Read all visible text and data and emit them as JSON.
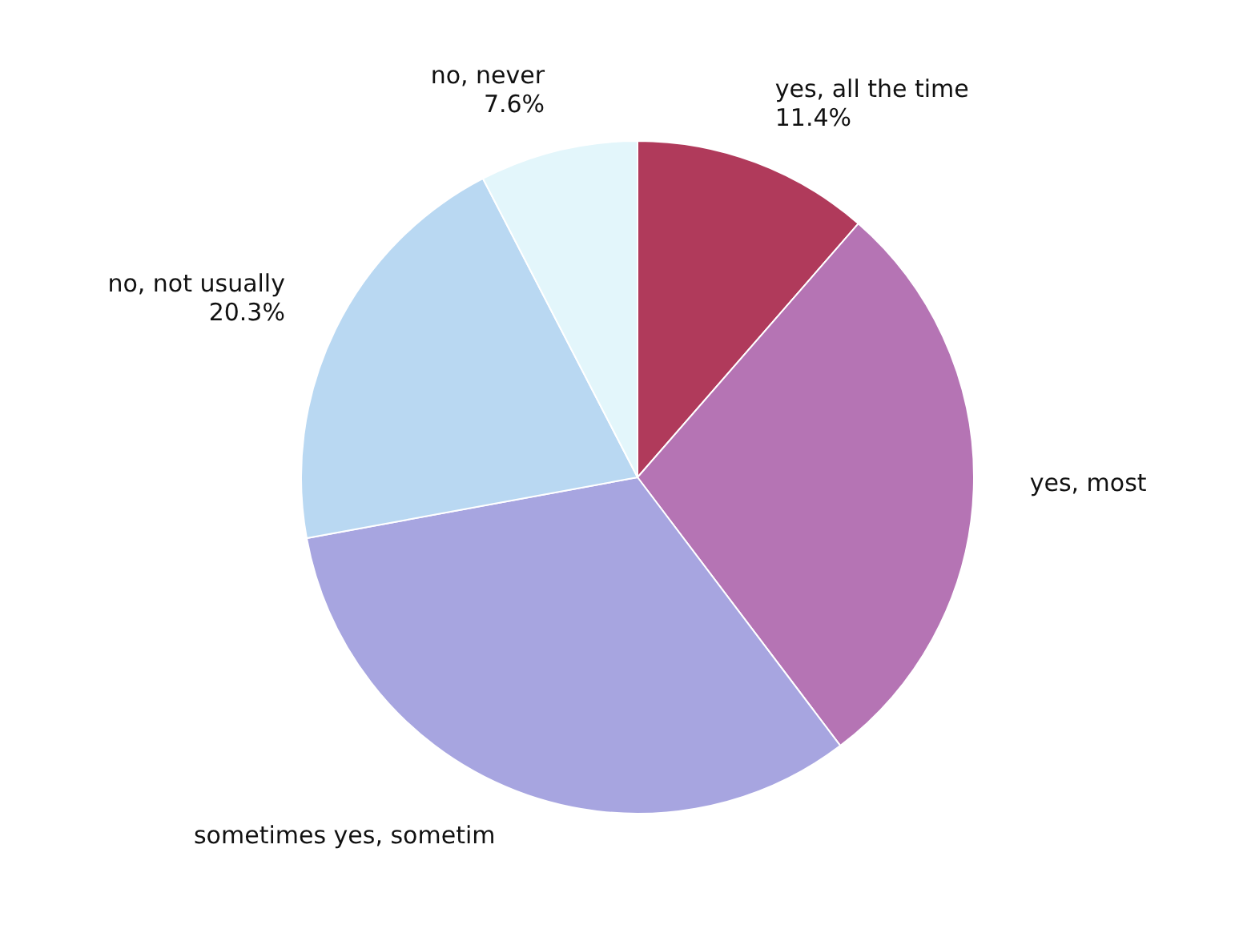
{
  "chart_data": {
    "type": "pie",
    "categories": [
      "yes, all the time",
      "yes, most",
      "sometimes yes, sometim",
      "no, not usually",
      "no, never"
    ],
    "values": [
      11.4,
      28.3,
      32.4,
      20.3,
      7.6
    ],
    "value_labels": [
      "11.4%",
      null,
      null,
      "20.3%",
      "7.6%"
    ],
    "colors": [
      "#b03a5b",
      "#b574b4",
      "#a7a5e0",
      "#b9d8f2",
      "#e3f6fb"
    ]
  }
}
